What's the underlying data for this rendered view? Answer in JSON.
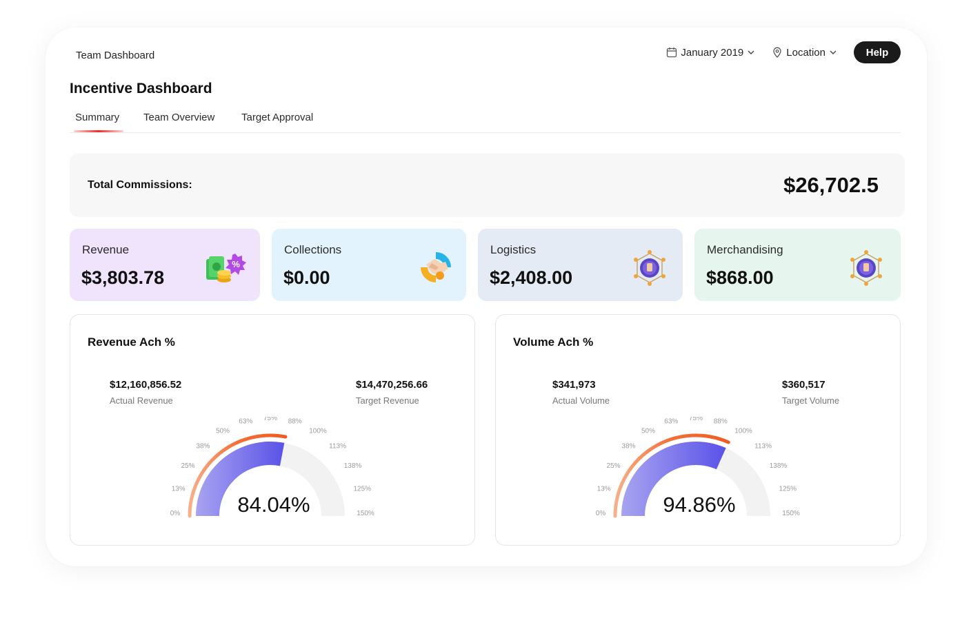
{
  "header": {
    "breadcrumb": "Team Dashboard",
    "date_filter": "January 2019",
    "location_filter": "Location",
    "help_label": "Help"
  },
  "page": {
    "title": "Incentive Dashboard",
    "tabs": [
      {
        "label": "Summary",
        "active": true
      },
      {
        "label": "Team Overview",
        "active": false
      },
      {
        "label": "Target Approval",
        "active": false
      }
    ]
  },
  "total": {
    "label": "Total Commissions:",
    "value": "$26,702.5"
  },
  "kpis": [
    {
      "label": "Revenue",
      "value": "$3,803.78",
      "icon": "money-percent-icon",
      "bg": "#f0e3fc"
    },
    {
      "label": "Collections",
      "value": "$0.00",
      "icon": "handshake-icon",
      "bg": "#e3f3fd"
    },
    {
      "label": "Logistics",
      "value": "$2,408.00",
      "icon": "network-globe-icon",
      "bg": "#e5ebf5"
    },
    {
      "label": "Merchandising",
      "value": "$868.00",
      "icon": "network-globe-icon",
      "bg": "#e6f6ee"
    }
  ],
  "gauges": [
    {
      "title": "Revenue Ach %",
      "actual_value": "$12,160,856.52",
      "actual_label": "Actual Revenue",
      "target_value": "$14,470,256.66",
      "target_label": "Target Revenue",
      "percent_text": "84.04%",
      "percent": 84.04
    },
    {
      "title": "Volume Ach %",
      "actual_value": "$341,973",
      "actual_label": "Actual Volume",
      "target_value": "$360,517",
      "target_label": "Target Volume",
      "percent_text": "94.86%",
      "percent": 94.86
    }
  ],
  "gauge_scale": {
    "ticks": [
      "0%",
      "13%",
      "25%",
      "38%",
      "50%",
      "63%",
      "75%",
      "88%",
      "100%",
      "113%",
      "138%",
      "125%",
      "150%"
    ],
    "max_percent": 150,
    "colors": {
      "fill_start": "#a8a4f1",
      "fill_end": "#5a52e8",
      "arc": "#f36f36",
      "track": "#f2f2f2"
    }
  }
}
